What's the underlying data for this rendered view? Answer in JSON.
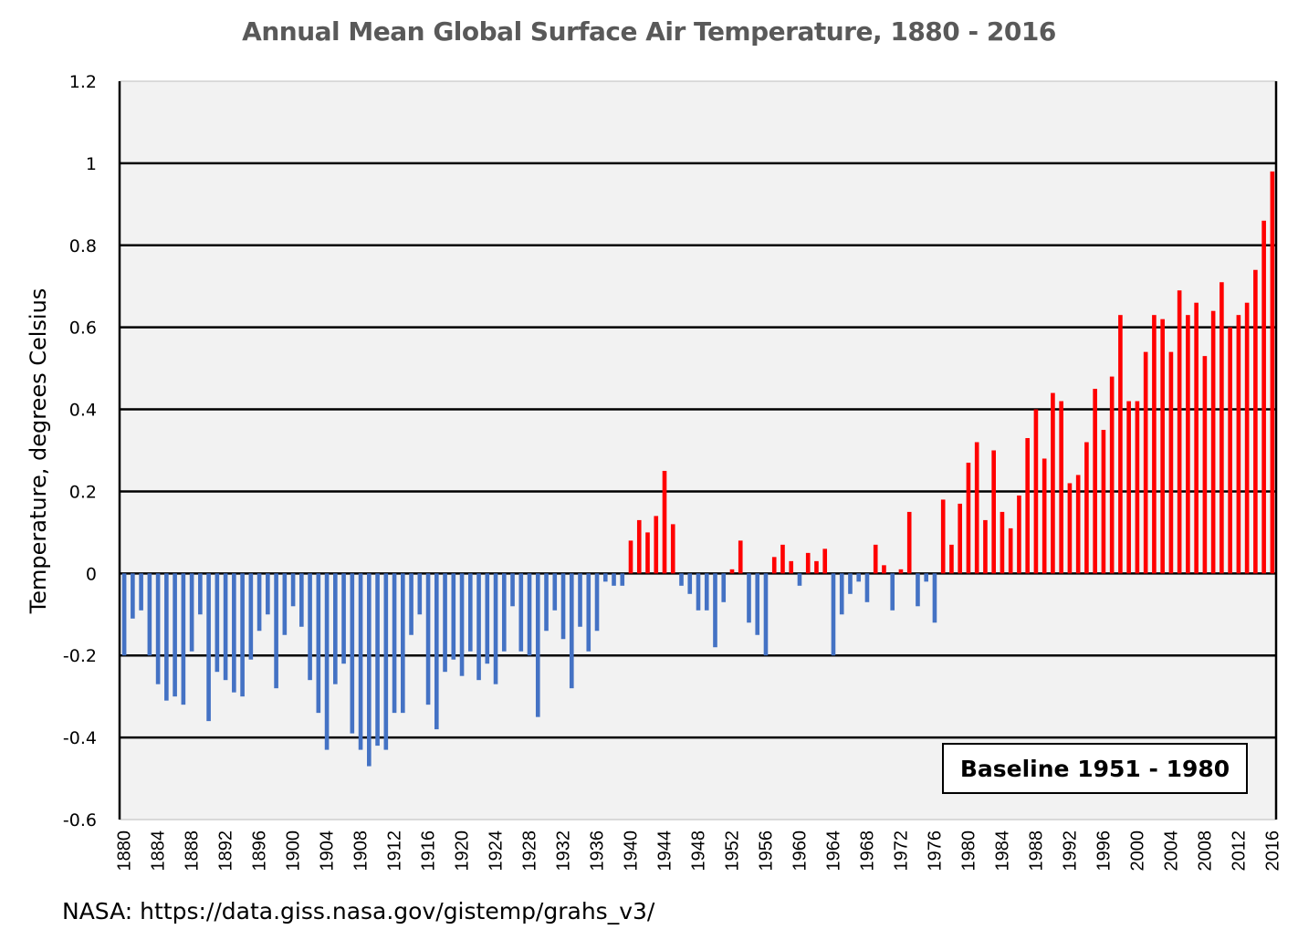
{
  "chart_data": {
    "type": "bar",
    "title": "Annual Mean Global Surface Air Temperature, 1880 - 2016",
    "xlabel": "",
    "ylabel": "Temperature, degrees Celsius",
    "ylim": [
      -0.6,
      1.2
    ],
    "yticks": [
      1.2,
      1,
      0.8,
      0.6,
      0.4,
      0.2,
      0,
      -0.2,
      -0.4,
      -0.6
    ],
    "ytick_labels": [
      "1.2",
      "1",
      "0.8",
      "0.6",
      "0.4",
      "0.2",
      "0",
      "-0.2",
      "-0.4",
      "-0.6"
    ],
    "xtick_labels": [
      "1880",
      "1884",
      "1888",
      "1892",
      "1896",
      "1900",
      "1904",
      "1908",
      "1912",
      "1916",
      "1920",
      "1924",
      "1928",
      "1932",
      "1936",
      "1940",
      "1944",
      "1948",
      "1952",
      "1956",
      "1960",
      "1964",
      "1968",
      "1972",
      "1976",
      "1980",
      "1984",
      "1988",
      "1992",
      "1996",
      "2000",
      "2004",
      "2008",
      "2012",
      "2016"
    ],
    "grid": "horizontal",
    "colors": {
      "positive": "#ff0000",
      "negative": "#4472c4",
      "plot_bg": "#f2f2f2",
      "grid": "#000000"
    },
    "annotation": "Baseline 1951 - 1980",
    "source": "NASA:  https://data.giss.nasa.gov/gistemp/grahs_v3/",
    "x_start": 1880,
    "x_end": 2016,
    "values": [
      -0.2,
      -0.11,
      -0.09,
      -0.2,
      -0.27,
      -0.31,
      -0.3,
      -0.32,
      -0.19,
      -0.1,
      -0.36,
      -0.24,
      -0.26,
      -0.29,
      -0.3,
      -0.21,
      -0.14,
      -0.1,
      -0.28,
      -0.15,
      -0.08,
      -0.13,
      -0.26,
      -0.34,
      -0.43,
      -0.27,
      -0.22,
      -0.39,
      -0.43,
      -0.47,
      -0.42,
      -0.43,
      -0.34,
      -0.34,
      -0.15,
      -0.1,
      -0.32,
      -0.38,
      -0.24,
      -0.21,
      -0.25,
      -0.19,
      -0.26,
      -0.22,
      -0.27,
      -0.19,
      -0.08,
      -0.19,
      -0.2,
      -0.35,
      -0.14,
      -0.09,
      -0.16,
      -0.28,
      -0.13,
      -0.19,
      -0.14,
      -0.02,
      -0.03,
      -0.03,
      0.08,
      0.13,
      0.1,
      0.14,
      0.25,
      0.12,
      -0.03,
      -0.05,
      -0.09,
      -0.09,
      -0.18,
      -0.07,
      0.01,
      0.08,
      -0.12,
      -0.15,
      -0.2,
      0.04,
      0.07,
      0.03,
      -0.03,
      0.05,
      0.03,
      0.06,
      -0.2,
      -0.1,
      -0.05,
      -0.02,
      -0.07,
      0.07,
      0.02,
      -0.09,
      0.01,
      0.15,
      -0.08,
      -0.02,
      -0.12,
      0.18,
      0.07,
      0.17,
      0.27,
      0.32,
      0.13,
      0.3,
      0.15,
      0.11,
      0.19,
      0.33,
      0.4,
      0.28,
      0.44,
      0.42,
      0.22,
      0.24,
      0.32,
      0.45,
      0.35,
      0.48,
      0.63,
      0.42,
      0.42,
      0.54,
      0.63,
      0.62,
      0.54,
      0.69,
      0.63,
      0.66,
      0.53,
      0.64,
      0.71,
      0.6,
      0.63,
      0.66,
      0.74,
      0.86,
      0.98
    ]
  }
}
